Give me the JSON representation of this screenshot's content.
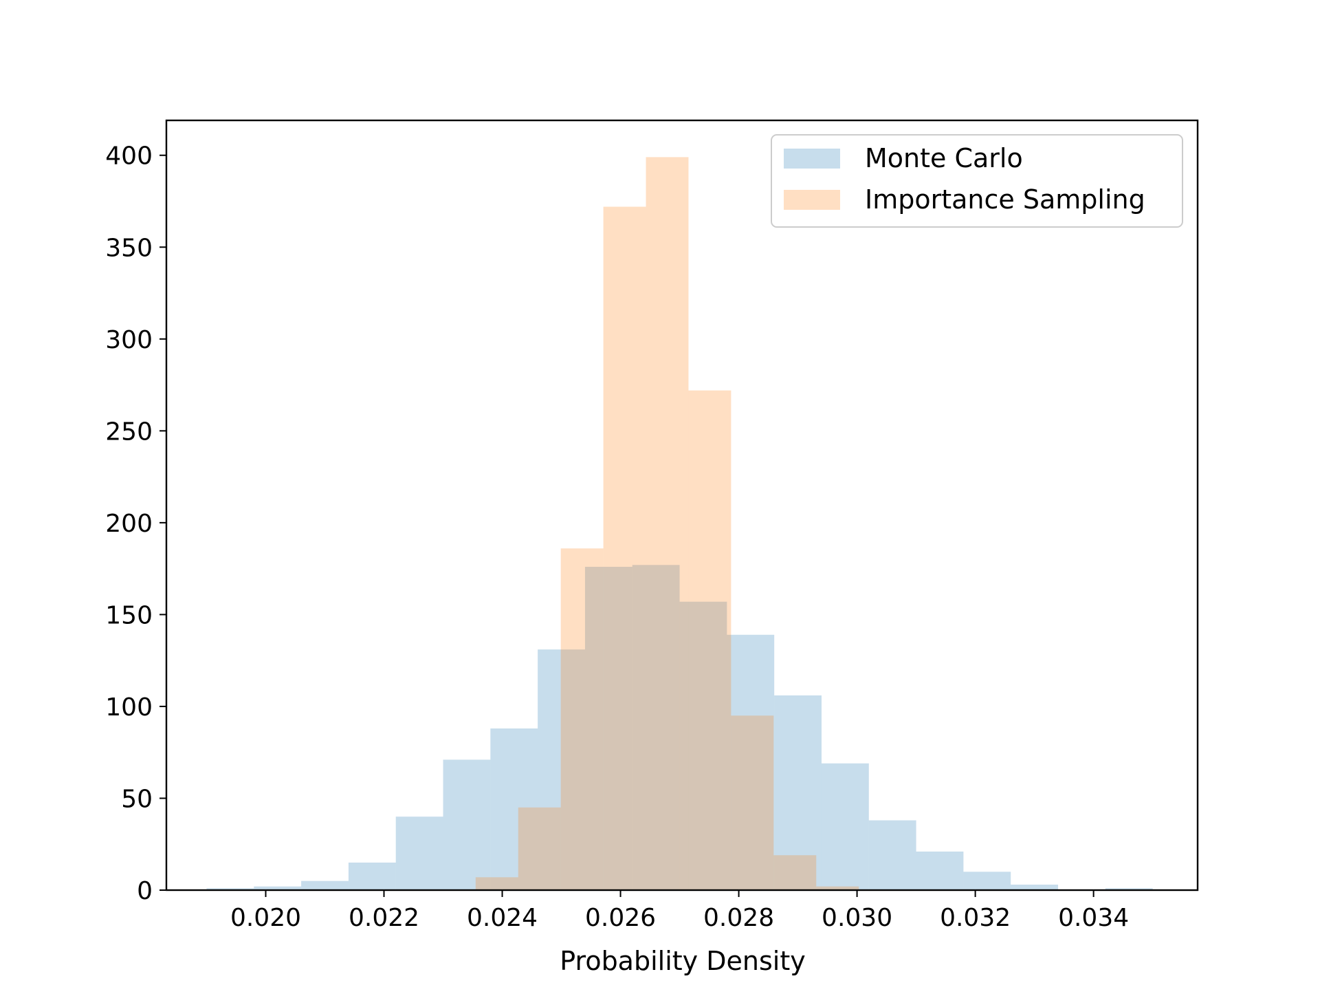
{
  "chart_data": {
    "type": "bar",
    "title": "",
    "xlabel": "Probability Density",
    "ylabel": "",
    "xlim": [
      0.01832,
      0.03576
    ],
    "ylim": [
      0,
      419
    ],
    "x_ticks": [
      0.02,
      0.022,
      0.024,
      0.026,
      0.028,
      0.03,
      0.032,
      0.034
    ],
    "x_tick_labels": [
      "0.020",
      "0.022",
      "0.024",
      "0.026",
      "0.028",
      "0.030",
      "0.032",
      "0.034"
    ],
    "y_ticks": [
      0,
      50,
      100,
      150,
      200,
      250,
      300,
      350,
      400
    ],
    "y_tick_labels": [
      "0",
      "50",
      "100",
      "150",
      "200",
      "250",
      "300",
      "350",
      "400"
    ],
    "grid": false,
    "legend_position": "top-right",
    "series": [
      {
        "name": "Monte Carlo",
        "color": "#1f77b4",
        "opacity": 0.25,
        "bin_edges": [
          0.019,
          0.0198,
          0.0206,
          0.0214,
          0.0222,
          0.023,
          0.0238,
          0.0246,
          0.0254,
          0.0262,
          0.027,
          0.0278,
          0.0286,
          0.0294,
          0.0302,
          0.031,
          0.0318,
          0.0326,
          0.0334,
          0.0342,
          0.035
        ],
        "values": [
          1,
          2,
          5,
          15,
          40,
          71,
          88,
          131,
          176,
          177,
          157,
          139,
          106,
          69,
          38,
          21,
          10,
          3,
          0,
          1
        ]
      },
      {
        "name": "Importance Sampling",
        "color": "#ff7f0e",
        "opacity": 0.25,
        "bin_edges": [
          0.02355,
          0.02427,
          0.02499,
          0.02571,
          0.02643,
          0.02715,
          0.02787,
          0.02859,
          0.02931,
          0.03003
        ],
        "values": [
          7,
          45,
          186,
          372,
          399,
          272,
          95,
          19,
          2
        ]
      }
    ]
  }
}
